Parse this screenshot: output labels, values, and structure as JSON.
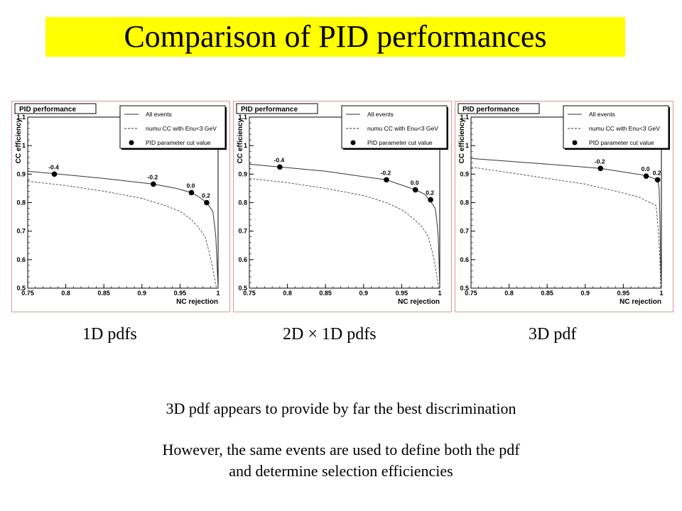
{
  "slide": {
    "title": "Comparison of PID performances",
    "captions": [
      "1D pdfs",
      "2D × 1D pdfs",
      "3D pdf"
    ],
    "conclusion": "3D pdf appears to provide by far the best discrimination",
    "caveat_line1": "However, the same events are used to define both the pdf",
    "caveat_line2": "and determine selection efficiencies",
    "title_bg_color": "#ffff00"
  },
  "chart_data": [
    {
      "type": "line",
      "title": "PID performance",
      "xlabel": "NC rejection",
      "ylabel": "CC efficiency",
      "xlim": [
        0.75,
        1.0
      ],
      "ylim": [
        0.5,
        1.1
      ],
      "xticks": [
        "0.75",
        "0.8",
        "0.85",
        "0.9",
        "0.95",
        "1"
      ],
      "yticks": [
        "0.5",
        "0.6",
        "0.7",
        "0.8",
        "0.9",
        "1",
        "1.1"
      ],
      "legend_position": "top-right",
      "series": [
        {
          "name": "All events",
          "style": "solid",
          "x": [
            0.75,
            0.79,
            0.85,
            0.915,
            0.945,
            0.965,
            0.975,
            0.985,
            0.993,
            0.995,
            0.997,
            0.998,
            1.0
          ],
          "y": [
            0.91,
            0.9,
            0.885,
            0.865,
            0.85,
            0.835,
            0.82,
            0.8,
            0.77,
            0.73,
            0.68,
            0.62,
            0.5
          ]
        },
        {
          "name": "numu CC with Enu<3 GeV",
          "style": "dashed",
          "x": [
            0.75,
            0.8,
            0.85,
            0.9,
            0.93,
            0.95,
            0.965,
            0.975,
            0.983,
            0.988,
            0.992,
            0.995,
            0.997,
            0.998
          ],
          "y": [
            0.875,
            0.86,
            0.84,
            0.815,
            0.79,
            0.77,
            0.74,
            0.71,
            0.68,
            0.63,
            0.58,
            0.54,
            0.51,
            0.5
          ]
        },
        {
          "name": "PID parameter cut value",
          "style": "markers",
          "points": [
            {
              "x": 0.785,
              "y": 0.9,
              "label": "-0.4"
            },
            {
              "x": 0.915,
              "y": 0.865,
              "label": "-0.2"
            },
            {
              "x": 0.965,
              "y": 0.835,
              "label": "0.0"
            },
            {
              "x": 0.985,
              "y": 0.8,
              "label": "0.2"
            }
          ]
        }
      ]
    },
    {
      "type": "line",
      "title": "PID performance",
      "xlabel": "NC rejection",
      "ylabel": "CC efficiency",
      "xlim": [
        0.75,
        1.0
      ],
      "ylim": [
        0.5,
        1.1
      ],
      "xticks": [
        "0.75",
        "0.8",
        "0.85",
        "0.9",
        "0.95",
        "1"
      ],
      "yticks": [
        "0.5",
        "0.6",
        "0.7",
        "0.8",
        "0.9",
        "1",
        "1.1"
      ],
      "legend_position": "top-right",
      "series": [
        {
          "name": "All events",
          "style": "solid",
          "x": [
            0.75,
            0.79,
            0.85,
            0.93,
            0.968,
            0.98,
            0.988,
            0.994,
            0.996,
            0.998,
            0.999,
            1.0
          ],
          "y": [
            0.935,
            0.925,
            0.91,
            0.88,
            0.845,
            0.83,
            0.805,
            0.78,
            0.74,
            0.68,
            0.6,
            0.5
          ]
        },
        {
          "name": "numu CC with Enu<3 GeV",
          "style": "dashed",
          "x": [
            0.75,
            0.8,
            0.85,
            0.9,
            0.93,
            0.95,
            0.965,
            0.977,
            0.985,
            0.99,
            0.994,
            0.997,
            0.999
          ],
          "y": [
            0.885,
            0.87,
            0.85,
            0.825,
            0.8,
            0.775,
            0.745,
            0.715,
            0.68,
            0.63,
            0.58,
            0.53,
            0.5
          ]
        },
        {
          "name": "PID parameter cut value",
          "style": "markers",
          "points": [
            {
              "x": 0.79,
              "y": 0.925,
              "label": "-0.4"
            },
            {
              "x": 0.93,
              "y": 0.88,
              "label": "-0.2"
            },
            {
              "x": 0.968,
              "y": 0.845,
              "label": "0.0"
            },
            {
              "x": 0.988,
              "y": 0.81,
              "label": "0.2"
            }
          ]
        }
      ]
    },
    {
      "type": "line",
      "title": "PID performance",
      "xlabel": "NC rejection",
      "ylabel": "CC efficiency",
      "xlim": [
        0.75,
        1.0
      ],
      "ylim": [
        0.5,
        1.1
      ],
      "xticks": [
        "0.75",
        "0.8",
        "0.85",
        "0.9",
        "0.95",
        "1"
      ],
      "yticks": [
        "0.5",
        "0.6",
        "0.7",
        "0.8",
        "0.9",
        "1",
        "1.1"
      ],
      "legend_position": "top-right",
      "series": [
        {
          "name": "All events",
          "style": "solid",
          "x": [
            0.75,
            0.8,
            0.85,
            0.92,
            0.98,
            0.995,
            0.997,
            0.998,
            0.999,
            1.0
          ],
          "y": [
            0.955,
            0.945,
            0.935,
            0.92,
            0.895,
            0.88,
            0.85,
            0.75,
            0.6,
            0.5
          ]
        },
        {
          "name": "numu CC with Enu<3 GeV",
          "style": "dashed",
          "x": [
            0.75,
            0.8,
            0.85,
            0.9,
            0.94,
            0.97,
            0.985,
            0.993,
            0.996,
            0.998,
            0.999
          ],
          "y": [
            0.925,
            0.905,
            0.885,
            0.865,
            0.84,
            0.82,
            0.8,
            0.79,
            0.7,
            0.6,
            0.5
          ]
        },
        {
          "name": "PID parameter cut value",
          "style": "markers",
          "points": [
            {
              "x": 0.92,
              "y": 0.92,
              "label": "-0.2"
            },
            {
              "x": 0.98,
              "y": 0.893,
              "label": "0.0"
            },
            {
              "x": 0.995,
              "y": 0.88,
              "label": "0.2"
            }
          ]
        }
      ]
    }
  ]
}
